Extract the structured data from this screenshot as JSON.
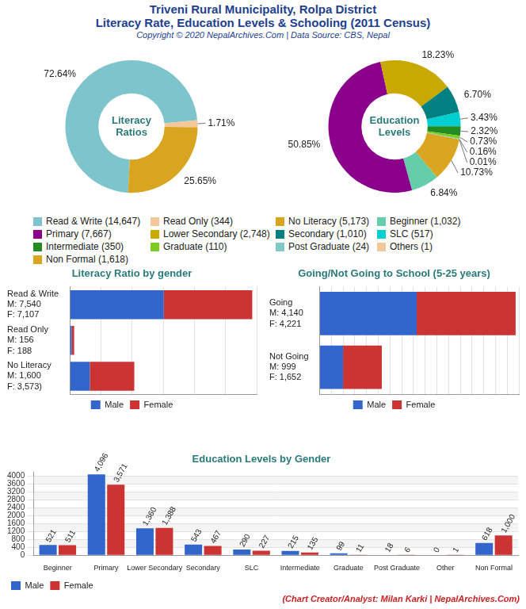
{
  "title": [
    "Triveni Rural Municipality, Rolpa District",
    "Literacy Rate, Education Levels & Schooling (2011 Census)"
  ],
  "subtitle": "Copyright © 2020 NepalArchives.Com | Data Source: CBS, Nepal",
  "footer": "(Chart Creator/Analyst: Milan Karki | NepalArchives.Com)",
  "chart_data": [
    {
      "type": "doughnut",
      "title": [
        "Literacy",
        "Ratios"
      ],
      "categories": [
        "Read & Write (14,647)",
        "Read Only (344)",
        "No Literacy (5,173)"
      ],
      "values": [
        72.64,
        1.71,
        25.65
      ],
      "value_labels": [
        "72.64%",
        "1.71%",
        "25.65%"
      ],
      "colors": [
        "#7ec4cc",
        "#f2c79a",
        "#d9a520"
      ],
      "data_labels": true,
      "legend": "bottom"
    },
    {
      "type": "doughnut",
      "title": [
        "Education",
        "Levels"
      ],
      "categories": [
        "Beginner (1,032)",
        "Primary (7,667)",
        "Lower Secondary (2,748)",
        "Secondary (1,010)",
        "SLC (517)",
        "Intermediate (350)",
        "Graduate (110)",
        "Post Graduate (24)",
        "Others (1)",
        "Non Formal (1,618)"
      ],
      "values": [
        6.84,
        50.85,
        18.23,
        6.7,
        3.43,
        2.32,
        0.73,
        0.16,
        0.01,
        10.73
      ],
      "value_labels": [
        "6.84%",
        "50.85%",
        "18.23%",
        "6.70%",
        "3.43%",
        "2.32%",
        "0.73%",
        "0.16%",
        "0.01%",
        "10.73%"
      ],
      "colors": [
        "#66cdaa",
        "#8b008b",
        "#c9a800",
        "#008080",
        "#00ced1",
        "#228b22",
        "#7ccd20",
        "#7fc8c8",
        "#f2c79a",
        "#daa520"
      ],
      "data_labels": true,
      "legend": "bottom"
    },
    {
      "type": "bar",
      "orientation": "horizontal",
      "stacked": true,
      "title": "Literacy Ratio by gender",
      "categories": [
        [
          "Read & Write",
          "M: 7,540",
          "F: 7,107"
        ],
        [
          "Read Only",
          "M: 156",
          "F: 188"
        ],
        [
          "No Literacy",
          "M: 1,600",
          "F: 3,573)"
        ]
      ],
      "series": [
        {
          "name": "Male",
          "color": "#3366cc",
          "values": [
            7540,
            156,
            1600
          ]
        },
        {
          "name": "Female",
          "color": "#cc3333",
          "values": [
            7107,
            188,
            3573
          ]
        }
      ],
      "xlim": [
        0,
        15000
      ],
      "xticks": [
        0,
        2500,
        5000,
        7500,
        10000,
        12500,
        15000
      ],
      "grid": true,
      "tick_labels": "y",
      "legend": "bottom"
    },
    {
      "type": "bar",
      "orientation": "horizontal",
      "stacked": true,
      "title": "Going/Not Going to School (5-25 years)",
      "categories": [
        [
          "Going",
          "M: 4,140",
          "F: 4,221"
        ],
        [
          "Not Going",
          "M: 999",
          "F: 1,652"
        ]
      ],
      "series": [
        {
          "name": "Male",
          "color": "#3366cc",
          "values": [
            4140,
            999
          ]
        },
        {
          "name": "Female",
          "color": "#cc3333",
          "values": [
            4221,
            1652
          ]
        }
      ],
      "xlim": [
        0,
        8500
      ],
      "xticks": [
        0,
        500,
        1000,
        1500,
        2000,
        2500,
        3000,
        3500,
        4000,
        4500,
        5000,
        5500,
        6000,
        6500,
        7000,
        7500,
        8000,
        8500
      ],
      "grid": true,
      "tick_labels": "y",
      "legend": "bottom"
    },
    {
      "type": "bar",
      "title": "Education Levels by Gender",
      "categories": [
        "Beginner",
        "Primary",
        "Lower Secondary",
        "Secondary",
        "SLC",
        "Intermediate",
        "Graduate",
        "Post Graduate",
        "Other",
        "Non Formal"
      ],
      "series": [
        {
          "name": "Male",
          "color": "#3366cc",
          "values": [
            521,
            4096,
            1360,
            543,
            290,
            215,
            99,
            18,
            0,
            618
          ],
          "value_labels": [
            "521",
            "4,096",
            "1,360",
            "543",
            "290",
            "215",
            "99",
            "18",
            "0",
            "618"
          ]
        },
        {
          "name": "Female",
          "color": "#cc3333",
          "values": [
            511,
            3571,
            1388,
            467,
            227,
            135,
            11,
            6,
            1,
            1000
          ],
          "value_labels": [
            "511",
            "3,571",
            "1,388",
            "467",
            "227",
            "135",
            "11",
            "6",
            "1",
            "1,000"
          ]
        }
      ],
      "ylim": [
        0,
        4200
      ],
      "yticks": [
        0,
        400,
        800,
        1200,
        1600,
        2000,
        2400,
        2800,
        3200,
        3600,
        4000
      ],
      "grid": true,
      "data_labels": true,
      "legend": "bottom-left"
    }
  ]
}
